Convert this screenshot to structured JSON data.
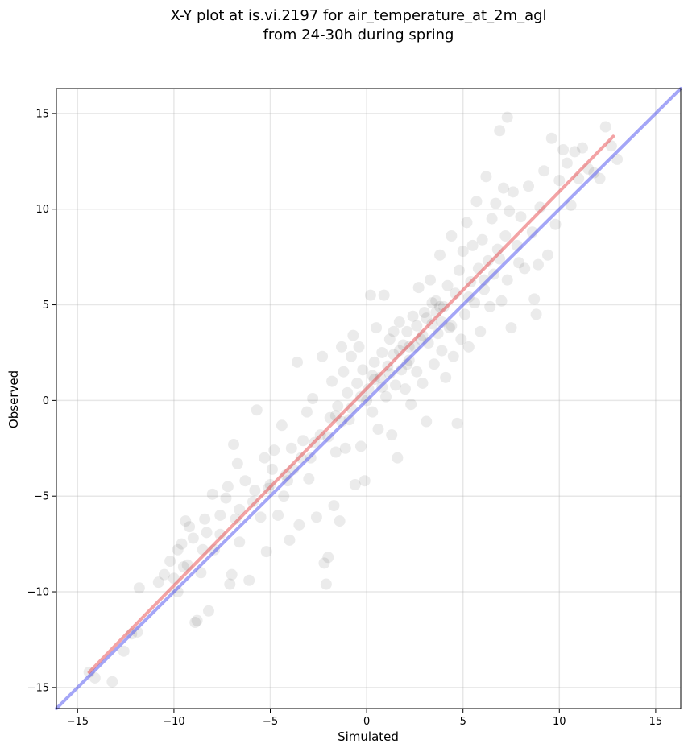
{
  "chart_data": {
    "type": "scatter",
    "title_line1": "X-Y plot at is.vi.2197 for air_temperature_at_2m_agl",
    "title_line2": "from 24-30h during spring",
    "xlabel": "Simulated",
    "ylabel": "Observed",
    "xlim": [
      -16.1,
      16.3
    ],
    "ylim": [
      -16.1,
      16.3
    ],
    "x_ticks": [
      -15,
      -10,
      -5,
      0,
      5,
      10,
      15
    ],
    "y_ticks": [
      -15,
      -10,
      -5,
      0,
      5,
      10,
      15
    ],
    "x_tick_labels": [
      "−15",
      "−10",
      "−5",
      "0",
      "5",
      "10",
      "15"
    ],
    "y_tick_labels": [
      "−15",
      "−10",
      "−5",
      "0",
      "5",
      "10",
      "15"
    ],
    "grid": true,
    "point_color": "#000000",
    "point_opacity": 0.08,
    "points": [
      [
        -14.4,
        -14.2
      ],
      [
        -14.1,
        -14.5
      ],
      [
        -13.2,
        -14.7
      ],
      [
        -12.6,
        -13.1
      ],
      [
        -12.2,
        -12.2
      ],
      [
        -11.8,
        -9.8
      ],
      [
        -10.5,
        -9.1
      ],
      [
        -10.2,
        -8.4
      ],
      [
        -10.0,
        -9.3
      ],
      [
        -9.8,
        -7.8
      ],
      [
        -9.6,
        -7.5
      ],
      [
        -9.5,
        -8.7
      ],
      [
        -9.4,
        -6.3
      ],
      [
        -9.2,
        -6.6
      ],
      [
        -9.0,
        -7.2
      ],
      [
        -8.9,
        -11.6
      ],
      [
        -8.8,
        -11.5
      ],
      [
        -8.6,
        -9.0
      ],
      [
        -8.4,
        -6.2
      ],
      [
        -8.2,
        -11.0
      ],
      [
        -8.0,
        -4.9
      ],
      [
        -7.9,
        -7.8
      ],
      [
        -7.6,
        -6.0
      ],
      [
        -7.3,
        -5.1
      ],
      [
        -7.2,
        -4.5
      ],
      [
        -7.1,
        -9.6
      ],
      [
        -7.0,
        -9.1
      ],
      [
        -6.9,
        -2.3
      ],
      [
        -6.7,
        -3.3
      ],
      [
        -6.6,
        -7.4
      ],
      [
        -6.3,
        -4.2
      ],
      [
        -6.1,
        -9.4
      ],
      [
        -5.8,
        -4.7
      ],
      [
        -5.7,
        -0.5
      ],
      [
        -5.5,
        -6.1
      ],
      [
        -5.3,
        -3.0
      ],
      [
        -5.2,
        -7.9
      ],
      [
        -5.0,
        -4.4
      ],
      [
        -4.8,
        -2.6
      ],
      [
        -4.6,
        -6.0
      ],
      [
        -4.4,
        -1.3
      ],
      [
        -4.3,
        -5.0
      ],
      [
        -4.1,
        -4.2
      ],
      [
        -4.0,
        -7.3
      ],
      [
        -3.8,
        -3.6
      ],
      [
        -3.6,
        2.0
      ],
      [
        -3.5,
        -6.5
      ],
      [
        -3.3,
        -2.1
      ],
      [
        -3.1,
        -0.6
      ],
      [
        -3.0,
        -4.1
      ],
      [
        -2.8,
        0.1
      ],
      [
        -2.6,
        -6.1
      ],
      [
        -2.4,
        -1.8
      ],
      [
        -2.3,
        2.3
      ],
      [
        -2.2,
        -8.5
      ],
      [
        -2.1,
        -9.6
      ],
      [
        -2.0,
        -8.2
      ],
      [
        -1.9,
        -0.9
      ],
      [
        -1.8,
        1.0
      ],
      [
        -1.7,
        -5.5
      ],
      [
        -1.6,
        -2.7
      ],
      [
        -1.5,
        -0.3
      ],
      [
        -1.4,
        -6.3
      ],
      [
        -1.3,
        2.8
      ],
      [
        -1.2,
        1.5
      ],
      [
        -1.1,
        -2.5
      ],
      [
        -1.0,
        0.4
      ],
      [
        -0.9,
        -1.0
      ],
      [
        -0.8,
        2.3
      ],
      [
        -0.7,
        3.4
      ],
      [
        -0.6,
        -4.4
      ],
      [
        -0.5,
        0.9
      ],
      [
        -0.4,
        2.8
      ],
      [
        -0.3,
        -2.4
      ],
      [
        -0.2,
        1.6
      ],
      [
        -0.1,
        -4.2
      ],
      [
        0.0,
        0.0
      ],
      [
        0.1,
        0.6
      ],
      [
        0.2,
        5.5
      ],
      [
        0.3,
        -0.6
      ],
      [
        0.4,
        2.0
      ],
      [
        0.5,
        3.8
      ],
      [
        0.6,
        -1.5
      ],
      [
        0.7,
        1.2
      ],
      [
        0.8,
        2.5
      ],
      [
        0.9,
        5.5
      ],
      [
        1.0,
        0.2
      ],
      [
        1.1,
        1.8
      ],
      [
        1.2,
        3.2
      ],
      [
        1.3,
        -1.8
      ],
      [
        1.4,
        2.4
      ],
      [
        1.5,
        0.8
      ],
      [
        1.6,
        -3.0
      ],
      [
        1.7,
        4.1
      ],
      [
        1.8,
        1.6
      ],
      [
        1.9,
        2.9
      ],
      [
        2.0,
        0.6
      ],
      [
        2.1,
        3.6
      ],
      [
        2.2,
        2.1
      ],
      [
        2.3,
        -0.2
      ],
      [
        2.4,
        4.4
      ],
      [
        2.5,
        2.8
      ],
      [
        2.6,
        1.5
      ],
      [
        2.7,
        5.9
      ],
      [
        2.8,
        3.2
      ],
      [
        2.9,
        0.9
      ],
      [
        3.0,
        4.6
      ],
      [
        3.1,
        -1.1
      ],
      [
        3.2,
        3.0
      ],
      [
        3.3,
        6.3
      ],
      [
        3.4,
        4.0
      ],
      [
        3.5,
        1.9
      ],
      [
        3.6,
        5.2
      ],
      [
        3.7,
        3.5
      ],
      [
        3.8,
        7.6
      ],
      [
        3.9,
        2.6
      ],
      [
        4.0,
        4.9
      ],
      [
        4.1,
        1.2
      ],
      [
        4.2,
        6.0
      ],
      [
        4.3,
        3.8
      ],
      [
        4.4,
        8.6
      ],
      [
        4.5,
        2.3
      ],
      [
        4.6,
        5.6
      ],
      [
        4.7,
        -1.2
      ],
      [
        4.8,
        6.8
      ],
      [
        4.9,
        3.2
      ],
      [
        5.0,
        7.8
      ],
      [
        5.1,
        4.5
      ],
      [
        5.2,
        9.3
      ],
      [
        5.3,
        2.8
      ],
      [
        5.4,
        6.2
      ],
      [
        5.5,
        8.1
      ],
      [
        5.6,
        5.1
      ],
      [
        5.7,
        10.4
      ],
      [
        5.8,
        6.9
      ],
      [
        5.9,
        3.6
      ],
      [
        6.0,
        8.4
      ],
      [
        6.1,
        5.8
      ],
      [
        6.2,
        11.7
      ],
      [
        6.3,
        7.3
      ],
      [
        6.4,
        4.9
      ],
      [
        6.5,
        9.5
      ],
      [
        6.6,
        6.6
      ],
      [
        6.7,
        10.3
      ],
      [
        6.8,
        7.9
      ],
      [
        6.9,
        14.1
      ],
      [
        7.0,
        5.2
      ],
      [
        7.1,
        11.1
      ],
      [
        7.2,
        8.6
      ],
      [
        7.3,
        6.3
      ],
      [
        7.4,
        9.9
      ],
      [
        7.5,
        3.8
      ],
      [
        7.6,
        10.9
      ],
      [
        7.8,
        8.1
      ],
      [
        8.0,
        9.6
      ],
      [
        8.2,
        6.9
      ],
      [
        8.4,
        11.2
      ],
      [
        8.6,
        8.8
      ],
      [
        8.7,
        5.3
      ],
      [
        8.8,
        4.5
      ],
      [
        9.0,
        10.1
      ],
      [
        9.2,
        12.0
      ],
      [
        9.4,
        7.6
      ],
      [
        9.6,
        13.7
      ],
      [
        9.8,
        9.2
      ],
      [
        10.0,
        11.5
      ],
      [
        10.2,
        13.1
      ],
      [
        10.4,
        12.4
      ],
      [
        10.6,
        10.2
      ],
      [
        10.8,
        13.0
      ],
      [
        11.0,
        11.6
      ],
      [
        11.2,
        13.2
      ],
      [
        11.5,
        12.1
      ],
      [
        11.8,
        11.9
      ],
      [
        12.1,
        11.6
      ],
      [
        12.4,
        14.3
      ],
      [
        12.7,
        13.3
      ],
      [
        13.0,
        12.6
      ],
      [
        7.3,
        14.8
      ],
      [
        8.9,
        7.1
      ],
      [
        -9.8,
        -10.0
      ],
      [
        -10.8,
        -9.5
      ],
      [
        -11.9,
        -12.1
      ],
      [
        -6.6,
        -5.7
      ],
      [
        -8.3,
        -6.9
      ],
      [
        -4.9,
        -3.6
      ],
      [
        -3.9,
        -2.5
      ],
      [
        -2.9,
        -3.0
      ],
      [
        -1.6,
        -0.8
      ],
      [
        0.4,
        1.1
      ],
      [
        1.4,
        3.6
      ],
      [
        2.9,
        3.4
      ],
      [
        3.9,
        4.1
      ],
      [
        4.4,
        3.9
      ],
      [
        5.3,
        5.4
      ],
      [
        6.1,
        6.3
      ],
      [
        6.9,
        7.4
      ],
      [
        7.9,
        7.2
      ],
      [
        2.2,
        2.8
      ],
      [
        2.6,
        3.9
      ],
      [
        3.1,
        4.3
      ],
      [
        3.4,
        5.1
      ],
      [
        3.6,
        4.6
      ],
      [
        3.8,
        4.9
      ],
      [
        2.1,
        1.9
      ],
      [
        1.7,
        2.6
      ],
      [
        1.2,
        1.4
      ],
      [
        0.8,
        0.7
      ],
      [
        0.3,
        1.3
      ],
      [
        -0.3,
        0.2
      ],
      [
        -0.8,
        -0.4
      ],
      [
        -1.3,
        -1.1
      ],
      [
        -2.0,
        -1.9
      ],
      [
        -2.7,
        -2.2
      ],
      [
        -3.4,
        -3.0
      ],
      [
        -4.2,
        -3.9
      ],
      [
        -5.1,
        -4.6
      ],
      [
        -5.9,
        -5.3
      ],
      [
        -6.8,
        -6.2
      ],
      [
        -7.6,
        -7.0
      ],
      [
        -8.5,
        -7.8
      ],
      [
        -9.3,
        -8.6
      ]
    ],
    "fit_line": {
      "color": "#e8474b",
      "start": [
        -14.4,
        -14.2
      ],
      "end": [
        12.8,
        13.8
      ]
    },
    "identity_line": {
      "color": "#4a4ef0",
      "start": [
        -16.1,
        -16.1
      ],
      "end": [
        16.3,
        16.3
      ]
    }
  }
}
